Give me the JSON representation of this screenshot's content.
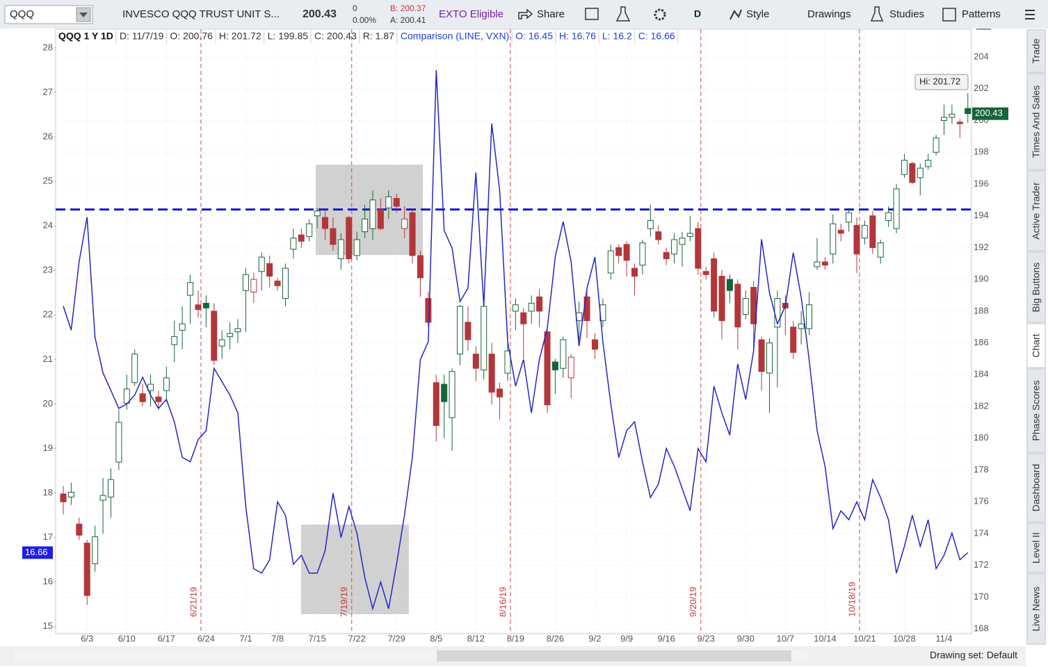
{
  "toolbar": {
    "symbol": "QQQ",
    "description": "INVESCO QQQ TRUST UNIT S...",
    "last": "200.43",
    "change": "0",
    "change_pct": "0.00%",
    "bid": "B: 200.37",
    "ask": "A: 200.41",
    "exto": "EXTO Eligible",
    "share": "Share",
    "aggregation": "D",
    "style": "Style",
    "drawings": "Drawings",
    "studies": "Studies",
    "patterns": "Patterns"
  },
  "info_strip": [
    "QQQ 1 Y 1D",
    "D: 11/7/19",
    "O: 200.76",
    "H: 201.72",
    "L: 199.85",
    "C: 200.43",
    "R: 1.87",
    "Comparison (LINE, VXN)",
    "O: 16.45",
    "H: 16.76",
    "L: 16.2",
    "C: 16.66"
  ],
  "side_tabs": [
    "Trade",
    "Times And Sales",
    "Active Trader",
    "Big Buttons",
    "Chart",
    "Phase Scores",
    "Dashboard",
    "Level II",
    "Live News"
  ],
  "drawing_set": "Drawing set: Default",
  "chart_data": {
    "type": "candlestick",
    "categories": [
      null,
      null,
      null,
      "6/3",
      null,
      null,
      null,
      null,
      "6/10",
      null,
      null,
      null,
      null,
      "6/17",
      null,
      null,
      null,
      null,
      "6/24",
      null,
      null,
      null,
      null,
      "7/1",
      null,
      null,
      null,
      "7/8",
      null,
      null,
      null,
      null,
      "7/15",
      null,
      null,
      null,
      null,
      "7/22",
      null,
      null,
      null,
      null,
      "7/29",
      null,
      null,
      null,
      null,
      "8/5",
      null,
      null,
      null,
      null,
      "8/12",
      null,
      null,
      null,
      null,
      "8/19",
      null,
      null,
      null,
      null,
      "8/26",
      null,
      null,
      null,
      null,
      "9/2",
      null,
      null,
      null,
      "9/9",
      null,
      null,
      null,
      null,
      "9/16",
      null,
      null,
      null,
      null,
      "9/23",
      null,
      null,
      null,
      null,
      "9/30",
      null,
      null,
      null,
      null,
      "10/7",
      null,
      null,
      null,
      null,
      "10/14",
      null,
      null,
      null,
      null,
      "10/21",
      null,
      null,
      null,
      null,
      "10/28",
      null,
      null,
      null,
      null,
      "11/4",
      null,
      null,
      null
    ],
    "series": [
      {
        "name": "QQQ",
        "up_color": "#17643a",
        "down_color": "#b3363b",
        "ohlc": [
          [
            176.5,
            177,
            175.2,
            176.0
          ],
          [
            176.3,
            177.2,
            175.8,
            176.6
          ],
          [
            174.6,
            175,
            173.6,
            173.9
          ],
          [
            173.4,
            173.6,
            169.5,
            170.1
          ],
          [
            172.1,
            174.5,
            171.6,
            173.8
          ],
          [
            176.1,
            177.5,
            174,
            176.4
          ],
          [
            176.3,
            178.1,
            175,
            177.4
          ],
          [
            178.5,
            181.8,
            178,
            181
          ],
          [
            182.2,
            184,
            181.8,
            183.1
          ],
          [
            183.5,
            185.6,
            183.3,
            185.3
          ],
          [
            182.8,
            183.4,
            182,
            182.3
          ],
          [
            183,
            184,
            182,
            183.4
          ],
          [
            182.6,
            183,
            181.8,
            182.3
          ],
          [
            183,
            184.5,
            182.3,
            183.8
          ],
          [
            185.9,
            187.4,
            184.8,
            186.4
          ],
          [
            186.8,
            188.3,
            185.6,
            187.2
          ],
          [
            189,
            190.3,
            187.2,
            189.8
          ],
          [
            188.4,
            189.3,
            187.6,
            188.1
          ],
          [
            188.5,
            189,
            187,
            188.2
          ],
          [
            188,
            188.5,
            184.6,
            184.9
          ],
          [
            185.8,
            186.8,
            185,
            186.2
          ],
          [
            186.4,
            187.3,
            185.6,
            186.6
          ],
          [
            186.7,
            187.5,
            186,
            186.9
          ],
          [
            189.3,
            190.7,
            186.7,
            190.3
          ],
          [
            189.2,
            190.4,
            188.5,
            190
          ],
          [
            190.5,
            191.7,
            189.3,
            191.4
          ],
          [
            191,
            191.5,
            189.5,
            190.2
          ],
          [
            189.9,
            190.1,
            189.3,
            189.6
          ],
          [
            188.8,
            191,
            188.3,
            190.7
          ],
          [
            191.9,
            193.2,
            191.3,
            192.6
          ],
          [
            192.8,
            193.2,
            192,
            192.4
          ],
          [
            192.7,
            193.8,
            192.4,
            193.5
          ],
          [
            194,
            194.5,
            193.2,
            194.3
          ],
          [
            193.9,
            194.5,
            192.5,
            193.2
          ],
          [
            193.2,
            193.9,
            191.8,
            192.2
          ],
          [
            191.3,
            192.9,
            190.6,
            192.5
          ],
          [
            193.9,
            194,
            191,
            191.3
          ],
          [
            191.5,
            193,
            191.2,
            192.5
          ],
          [
            193,
            194.7,
            192.6,
            193.8
          ],
          [
            193.2,
            195.6,
            192.5,
            195
          ],
          [
            194.4,
            195.1,
            193.1,
            193.2
          ],
          [
            194.5,
            195.6,
            193.8,
            195.2
          ],
          [
            195.1,
            195.4,
            194.2,
            194.6
          ],
          [
            193.2,
            194.6,
            192.6,
            193.8
          ],
          [
            194.2,
            194.4,
            191,
            191.5
          ],
          [
            191.5,
            191.8,
            188.9,
            190.1
          ],
          [
            188.8,
            189.2,
            187,
            187.3
          ],
          [
            183.5,
            184,
            179.8,
            180.8
          ],
          [
            183.4,
            184,
            180,
            182.3
          ],
          [
            181.3,
            184.4,
            179.2,
            184.2
          ],
          [
            185.3,
            188.4,
            184.6,
            188.3
          ],
          [
            187.3,
            188.3,
            185.5,
            186.2
          ],
          [
            185.3,
            185.8,
            183.6,
            184.4
          ],
          [
            184.3,
            188.6,
            183.7,
            188.3
          ],
          [
            185.3,
            186,
            182.1,
            182.9
          ],
          [
            183.1,
            183.5,
            181.2,
            182.6
          ],
          [
            184.1,
            186.7,
            183.6,
            185.5
          ],
          [
            188,
            188.8,
            186.8,
            188.4
          ],
          [
            187.9,
            188.2,
            185,
            187.2
          ],
          [
            188,
            189,
            187.2,
            188.5
          ],
          [
            188.9,
            189.4,
            187,
            188
          ],
          [
            186.7,
            187.1,
            181.6,
            182.1
          ],
          [
            184.8,
            185,
            182.8,
            184.3
          ],
          [
            184.4,
            186.4,
            183.8,
            186.2
          ],
          [
            183.8,
            185.3,
            182.5,
            185.1
          ],
          [
            187.4,
            188.6,
            186.2,
            187.9
          ],
          [
            188.9,
            189.3,
            186.3,
            187.4
          ],
          [
            186.2,
            186.6,
            185,
            185.6
          ],
          [
            187.4,
            188.8,
            187,
            188.4
          ],
          [
            190.4,
            192.2,
            190,
            191.8
          ],
          [
            192,
            192.2,
            191,
            191.5
          ],
          [
            192.2,
            192.4,
            190.2,
            191.2
          ],
          [
            190.7,
            191,
            189,
            190.2
          ],
          [
            190.9,
            192.5,
            190.3,
            192.3
          ],
          [
            193.2,
            194.7,
            192.7,
            193.7
          ],
          [
            193,
            193.4,
            192.2,
            192.5
          ],
          [
            191.7,
            192,
            190.9,
            191.3
          ],
          [
            191.6,
            192.9,
            191,
            192.5
          ],
          [
            192.2,
            193,
            190.8,
            192.6
          ],
          [
            192.7,
            194,
            192.4,
            192.9
          ],
          [
            193.2,
            193.6,
            190.3,
            190.7
          ],
          [
            190.5,
            190.8,
            190,
            190.3
          ],
          [
            191.3,
            191.7,
            187.6,
            188
          ],
          [
            190.2,
            190.6,
            186.2,
            187.4
          ],
          [
            190,
            190.3,
            188.5,
            189.3
          ],
          [
            189.7,
            190,
            185.6,
            187
          ],
          [
            187.8,
            189.3,
            187.5,
            188.8
          ],
          [
            189.5,
            189.9,
            185.6,
            187.2
          ],
          [
            186.2,
            186.4,
            183,
            184.2
          ],
          [
            184.1,
            186.3,
            181.6,
            186
          ],
          [
            187,
            189.3,
            183.2,
            188.8
          ],
          [
            188.5,
            189,
            186.5,
            188.2
          ],
          [
            187,
            187.4,
            185,
            185.4
          ],
          [
            186.9,
            188,
            185.9,
            187.2
          ],
          [
            186.9,
            189.2,
            186.5,
            188.4
          ],
          [
            190.8,
            192.6,
            190.6,
            191.1
          ],
          [
            191.1,
            191.4,
            190.6,
            190.9
          ],
          [
            191.6,
            194.1,
            191,
            193.5
          ],
          [
            193.1,
            193.5,
            192.4,
            192.9
          ],
          [
            193.6,
            194.5,
            193,
            194.2
          ],
          [
            193.4,
            193.9,
            190.4,
            191.6
          ],
          [
            192.6,
            193.7,
            192.2,
            193.4
          ],
          [
            194,
            194.3,
            191.6,
            192
          ],
          [
            191.4,
            192.5,
            191,
            192.3
          ],
          [
            193.7,
            194.6,
            193.3,
            194.2
          ],
          [
            193.2,
            196,
            192.9,
            195.7
          ],
          [
            196.6,
            197.9,
            196.4,
            197.5
          ],
          [
            197.3,
            197.4,
            196,
            196.1
          ],
          [
            196.4,
            197.3,
            195.3,
            197
          ],
          [
            197.1,
            197.9,
            196.9,
            197.5
          ],
          [
            198,
            199.1,
            197.8,
            198.9
          ],
          [
            200,
            201,
            199.1,
            200.2
          ],
          [
            200.2,
            201,
            199.8,
            200.4
          ],
          [
            199.9,
            200.1,
            198.9,
            199.8
          ],
          [
            200.76,
            201.72,
            199.85,
            200.43
          ]
        ]
      },
      {
        "name": "VXN",
        "axis": "y2",
        "color": "#2424c4",
        "values": [
          22.2,
          21.66,
          23.2,
          24.2,
          21.5,
          20.7,
          20.3,
          19.9,
          20.0,
          20.2,
          20.6,
          20.2,
          19.9,
          20.1,
          19.6,
          18.8,
          18.7,
          19.2,
          19.4,
          20.8,
          20.5,
          20.2,
          19.8,
          17.7,
          16.3,
          16.2,
          16.5,
          17.8,
          17.5,
          16.4,
          16.6,
          16.2,
          16.2,
          16.7,
          18.0,
          17.0,
          17.7,
          17.1,
          16.1,
          15.4,
          16.0,
          15.4,
          16.4,
          17.5,
          18.8,
          21.0,
          21.4,
          27.5,
          23.9,
          23.5,
          22.3,
          22.6,
          25.2,
          22.2,
          26.3,
          24.8,
          21.4,
          20.4,
          21.0,
          19.8,
          21.0,
          21.7,
          23.3,
          24.1,
          23.2,
          21.3,
          22.6,
          23.3,
          21.4,
          20.0,
          18.8,
          19.4,
          19.6,
          18.7,
          17.9,
          18.2,
          19.0,
          18.6,
          18.1,
          17.6,
          19.0,
          18.7,
          20.4,
          19.8,
          19.3,
          20.9,
          20.1,
          21.2,
          23.7,
          22.5,
          21.8,
          22.2,
          23.4,
          22.4,
          21.0,
          19.4,
          18.6,
          17.2,
          17.6,
          17.4,
          17.8,
          17.4,
          18.3,
          17.9,
          17.4,
          16.2,
          16.8,
          17.5,
          16.8,
          17.4,
          16.3,
          16.6,
          17.1,
          16.5,
          16.66
        ]
      }
    ],
    "ylim": [
      167.7,
      205.75
    ],
    "yticks": [
      168,
      170,
      172,
      174,
      176,
      178,
      180,
      182,
      184,
      186,
      188,
      190,
      192,
      194,
      196,
      198,
      200,
      202,
      204
    ],
    "y2lim": [
      14.84,
      28.42
    ],
    "y2ticks": [
      15,
      16,
      17,
      18,
      19,
      20,
      21,
      22,
      23,
      24,
      25,
      26,
      27,
      28
    ],
    "grid": true,
    "hline": {
      "value": 194.4,
      "color": "#1a1ad8"
    },
    "events": [
      "6/21/19",
      "7/19/19",
      "8/16/19",
      "9/20/19",
      "10/18/19"
    ],
    "high_label": "Hi: 201.72",
    "last_price": 200.43,
    "y2_last": 16.66
  }
}
